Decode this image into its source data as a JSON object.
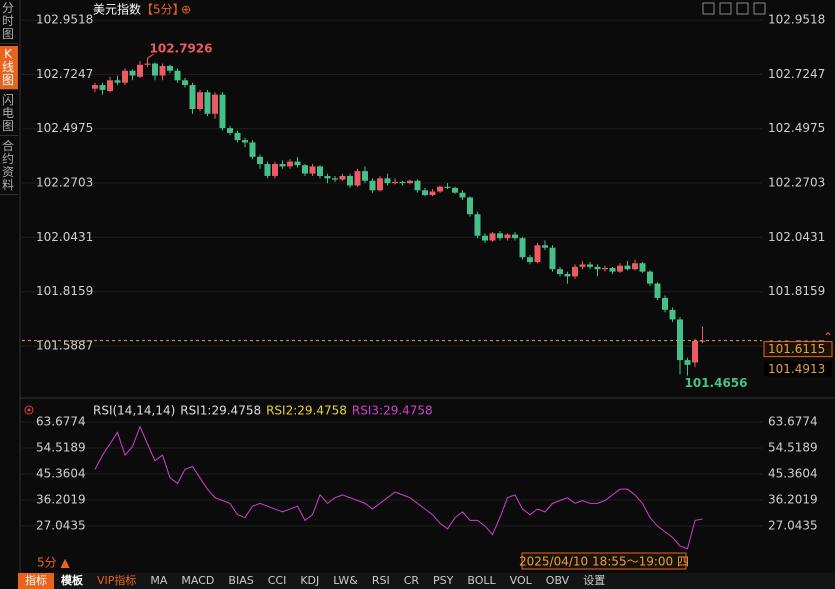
{
  "header": {
    "title": "美元指数",
    "period": "【5分】",
    "icon": "⊕"
  },
  "sidebar": [
    "分时图",
    "K线图",
    "闪电图",
    "合约资料"
  ],
  "period_switch": "5分 ▲",
  "crosshair_time": "2025/04/10 18:55～19:00 四",
  "toolbar": [
    "指标",
    "模板",
    "VIP指标",
    "MA",
    "MACD",
    "BIAS",
    "CCI",
    "KDJ",
    "LW&",
    "RSI",
    "CR",
    "PSY",
    "BOLL",
    "VOL",
    "OBV",
    "设置"
  ],
  "chart_data": [
    {
      "type": "candlestick",
      "up_color": "#ec5b62",
      "down_color": "#45c08a",
      "grid": true,
      "ylim": [
        101.384,
        102.994
      ],
      "yticks": [
        102.9518,
        102.7247,
        102.4975,
        102.2703,
        102.0431,
        101.8159,
        101.5887
      ],
      "max_label": 102.7926,
      "min_label": 101.4656,
      "last_price": 101.6115,
      "marker_price": 101.4913,
      "open": [
        102.665,
        102.68,
        102.655,
        102.7,
        102.69,
        102.74,
        102.715,
        102.765,
        102.77,
        102.72,
        102.76,
        102.74,
        102.7,
        102.68,
        102.58,
        102.65,
        102.56,
        102.64,
        102.5,
        102.48,
        102.45,
        102.44,
        102.38,
        102.35,
        102.3,
        102.35,
        102.34,
        102.36,
        102.345,
        102.31,
        102.34,
        102.3,
        102.29,
        102.285,
        102.3,
        102.26,
        102.32,
        102.28,
        102.24,
        102.29,
        102.27,
        102.275,
        102.27,
        102.28,
        102.24,
        102.22,
        102.235,
        102.255,
        102.25,
        102.23,
        102.21,
        102.14,
        102.05,
        102.03,
        102.06,
        102.04,
        102.055,
        102.04,
        101.96,
        101.94,
        102.01,
        102.0,
        101.91,
        101.89,
        101.88,
        101.92,
        101.93,
        101.92,
        101.91,
        101.915,
        101.9,
        101.925,
        101.91,
        101.935,
        101.9,
        101.85,
        101.79,
        101.74,
        101.7,
        101.53,
        101.52,
        101.6115
      ],
      "close": [
        102.68,
        102.66,
        102.7,
        102.69,
        102.74,
        102.72,
        102.765,
        102.77,
        102.72,
        102.76,
        102.74,
        102.7,
        102.68,
        102.58,
        102.65,
        102.56,
        102.64,
        102.5,
        102.48,
        102.45,
        102.44,
        102.38,
        102.35,
        102.3,
        102.35,
        102.34,
        102.36,
        102.345,
        102.31,
        102.34,
        102.3,
        102.29,
        102.285,
        102.3,
        102.26,
        102.32,
        102.28,
        102.24,
        102.29,
        102.27,
        102.275,
        102.27,
        102.28,
        102.24,
        102.22,
        102.235,
        102.255,
        102.25,
        102.23,
        102.21,
        102.14,
        102.05,
        102.03,
        102.06,
        102.04,
        102.055,
        102.04,
        101.96,
        101.94,
        102.01,
        102.0,
        101.91,
        101.89,
        101.88,
        101.92,
        101.93,
        101.92,
        101.91,
        101.915,
        101.9,
        101.925,
        101.91,
        101.935,
        101.9,
        101.85,
        101.79,
        101.74,
        101.7,
        101.53,
        101.51,
        101.61,
        101.6115
      ],
      "high": [
        102.69,
        102.69,
        102.715,
        102.72,
        102.75,
        102.745,
        102.78,
        102.7926,
        102.775,
        102.77,
        102.765,
        102.75,
        102.71,
        102.69,
        102.66,
        102.66,
        102.65,
        102.65,
        102.51,
        102.49,
        102.46,
        102.45,
        102.39,
        102.36,
        102.36,
        102.365,
        102.37,
        102.38,
        102.35,
        102.35,
        102.345,
        102.31,
        102.3,
        102.31,
        102.31,
        102.33,
        102.34,
        102.29,
        102.3,
        102.31,
        102.29,
        102.28,
        102.285,
        102.285,
        102.25,
        102.245,
        102.26,
        102.27,
        102.255,
        102.24,
        102.215,
        102.15,
        102.06,
        102.065,
        102.07,
        102.06,
        102.065,
        102.045,
        101.97,
        102.02,
        102.03,
        102.01,
        101.92,
        101.9,
        101.93,
        101.945,
        101.94,
        101.93,
        101.925,
        101.92,
        101.935,
        101.945,
        101.95,
        101.94,
        101.905,
        101.855,
        101.8,
        101.75,
        101.71,
        101.54,
        101.62,
        101.67
      ],
      "low": [
        102.65,
        102.64,
        102.65,
        102.68,
        102.68,
        102.7,
        102.71,
        102.755,
        102.7,
        102.7,
        102.73,
        102.69,
        102.67,
        102.56,
        102.57,
        102.55,
        102.54,
        102.49,
        102.47,
        102.44,
        102.42,
        102.37,
        102.33,
        102.29,
        102.29,
        102.33,
        102.33,
        102.335,
        102.3,
        102.3,
        102.29,
        102.27,
        102.275,
        102.28,
        102.25,
        102.255,
        102.27,
        102.23,
        102.235,
        102.26,
        102.265,
        102.26,
        102.265,
        102.23,
        102.215,
        102.215,
        102.23,
        102.245,
        102.225,
        102.2,
        102.13,
        102.04,
        102.02,
        102.025,
        102.03,
        102.03,
        102.03,
        101.95,
        101.93,
        101.935,
        101.99,
        101.9,
        101.88,
        101.85,
        101.87,
        101.91,
        101.91,
        101.88,
        101.9,
        101.89,
        101.895,
        101.905,
        101.905,
        101.895,
        101.84,
        101.78,
        101.73,
        101.69,
        101.47,
        101.4656,
        101.5,
        101.6
      ]
    },
    {
      "type": "line",
      "grid": true,
      "ylim": [
        16.8,
        67.2
      ],
      "yticks": [
        63.6774,
        54.5189,
        45.3604,
        36.2019,
        27.0435
      ],
      "legend": [
        {
          "text": "RSI(14,14,14)",
          "color": "#dddddd"
        },
        {
          "text": "RSI1:29.4758",
          "color": "#dddddd"
        },
        {
          "text": "RSI2:29.4758",
          "color": "#e6d23a"
        },
        {
          "text": "RSI3:29.4758",
          "color": "#d23fd2"
        }
      ],
      "series": [
        {
          "color": "#d23fd2",
          "values": [
            47,
            52,
            56,
            60,
            52,
            55,
            62,
            56,
            50,
            52,
            44,
            42,
            47,
            48,
            44,
            40,
            37,
            36,
            35,
            31,
            30,
            34,
            35,
            34,
            33,
            32,
            33,
            34,
            29,
            31,
            38,
            35,
            37,
            38,
            37,
            36,
            35,
            33,
            35,
            37,
            39,
            38,
            37,
            35,
            33,
            31,
            28,
            26,
            30,
            32,
            29,
            29,
            27,
            24,
            30,
            37,
            38,
            33,
            31,
            33,
            32,
            35,
            36,
            37,
            35,
            36,
            35,
            35,
            36,
            38,
            40,
            40,
            38,
            35,
            30,
            27,
            25,
            23,
            20,
            19,
            29,
            29.4758
          ]
        }
      ]
    }
  ]
}
